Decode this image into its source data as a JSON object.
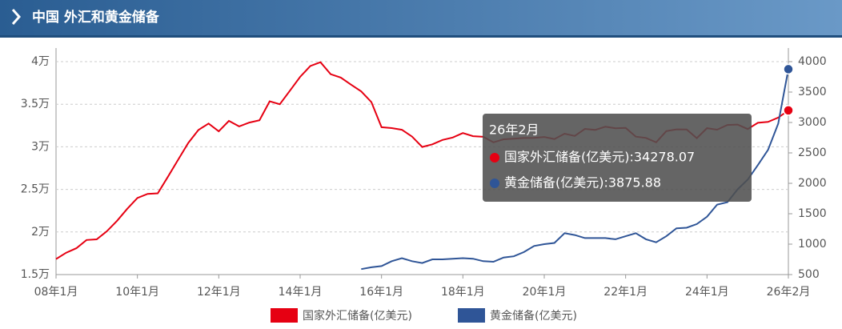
{
  "chart_data": {
    "type": "line",
    "title": "中国 外汇和黄金储备",
    "categories": [
      "08年1月",
      null,
      null,
      null,
      null,
      null,
      null,
      null,
      "10年1月",
      null,
      null,
      null,
      null,
      null,
      null,
      null,
      "12年1月",
      null,
      null,
      null,
      null,
      null,
      null,
      null,
      "14年1月",
      null,
      null,
      null,
      null,
      null,
      null,
      null,
      "16年1月",
      null,
      null,
      null,
      null,
      null,
      null,
      null,
      "18年1月",
      null,
      null,
      null,
      null,
      null,
      null,
      null,
      "20年1月",
      null,
      null,
      null,
      null,
      null,
      null,
      null,
      "22年1月",
      null,
      null,
      null,
      null,
      null,
      null,
      null,
      "24年1月",
      null,
      null,
      null,
      null,
      null,
      null,
      null,
      "26年2月"
    ],
    "series": [
      {
        "name": "国家外汇储备(亿美元)",
        "color": "#e60012",
        "values": [
          16822,
          17566,
          18088,
          19056,
          19134,
          20089,
          21316,
          22726,
          23992,
          24471,
          24543,
          26483,
          28473,
          30447,
          31975,
          32738,
          31811,
          33049,
          32400,
          32850,
          33116,
          35340,
          35000,
          36600,
          38213,
          39480,
          39932,
          38529,
          38134,
          37300,
          36500,
          35255,
          32300,
          32200,
          32000,
          31207,
          29982,
          30295,
          30807,
          31092,
          31614,
          31249,
          31179,
          30531,
          30879,
          30950,
          31037,
          31052,
          31155,
          30915,
          31543,
          31280,
          32107,
          31982,
          32358,
          32176,
          32216,
          31195,
          31043,
          30524,
          31845,
          32048,
          32043,
          31012,
          32193,
          32008,
          32564,
          32611,
          32090,
          32817,
          32922,
          33430,
          34278.07
        ]
      },
      {
        "name": "黄金储备(亿美元)",
        "color": "#2f5597",
        "axis": "y2",
        "values": [
          null,
          null,
          null,
          null,
          null,
          null,
          null,
          null,
          null,
          null,
          null,
          null,
          null,
          null,
          null,
          null,
          null,
          null,
          null,
          null,
          null,
          null,
          null,
          null,
          null,
          null,
          null,
          null,
          null,
          null,
          590,
          620,
          640,
          720,
          770,
          720,
          690,
          750,
          750,
          760,
          770,
          760,
          720,
          710,
          780,
          800,
          870,
          970,
          1000,
          1020,
          1180,
          1150,
          1100,
          1100,
          1100,
          1080,
          1130,
          1180,
          1080,
          1030,
          1130,
          1260,
          1270,
          1330,
          1450,
          1650,
          1690,
          1900,
          2060,
          2300,
          2550,
          2980,
          3875.88
        ]
      }
    ],
    "ylim": [
      15000,
      40000
    ],
    "yticks": [
      {
        "value": 15000,
        "label": "1.5万"
      },
      {
        "value": 20000,
        "label": "2万"
      },
      {
        "value": 25000,
        "label": "2.5万"
      },
      {
        "value": 30000,
        "label": "3万"
      },
      {
        "value": 35000,
        "label": "3.5万"
      },
      {
        "value": 40000,
        "label": "4万"
      }
    ],
    "y2lim": [
      500,
      4000
    ],
    "y2ticks": [
      500,
      1000,
      1500,
      2000,
      2500,
      3000,
      3500,
      4000
    ],
    "grid": true,
    "legend": "bottom",
    "tooltip": {
      "title": "26年2月",
      "lines": [
        "国家外汇储备(亿美元):34278.07",
        "黄金储备(亿美元):3875.88"
      ]
    }
  }
}
